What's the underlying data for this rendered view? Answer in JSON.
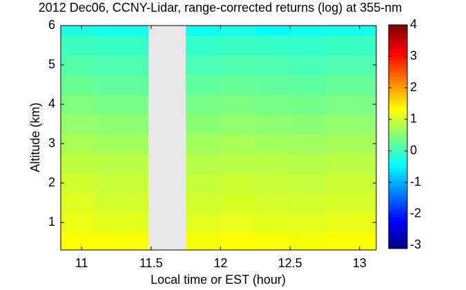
{
  "chart_data": {
    "type": "heatmap",
    "title": "2012 Dec06, CCNY-Lidar, range-corrected returns (log) at 355-nm",
    "x_label": "Local time or EST (hour)",
    "y_label": "Altitude (km)",
    "x_bins": [
      10.85,
      11.1,
      11.42,
      11.48,
      11.75,
      12,
      12.25,
      12.5,
      12.75,
      13.12
    ],
    "y_bins": [
      0.3,
      0.75,
      1.25,
      1.75,
      2.25,
      2.75,
      3.25,
      3.75,
      4.25,
      4.75,
      5.25,
      5.75,
      6.0
    ],
    "z": [
      [
        1.35,
        1.3,
        1.3,
        null,
        1.28,
        1.33,
        1.3,
        1.27,
        1.32
      ],
      [
        1.2,
        1.15,
        1.15,
        null,
        1.13,
        1.18,
        1.15,
        1.12,
        1.17
      ],
      [
        1.1,
        1.05,
        1.05,
        null,
        1.03,
        1.08,
        1.05,
        1.02,
        1.07
      ],
      [
        1.0,
        0.95,
        0.95,
        null,
        0.93,
        0.98,
        0.95,
        0.92,
        0.97
      ],
      [
        0.9,
        0.85,
        0.85,
        null,
        0.83,
        0.88,
        0.85,
        0.82,
        0.87
      ],
      [
        0.75,
        0.7,
        0.7,
        null,
        0.68,
        0.73,
        0.7,
        0.67,
        0.72
      ],
      [
        0.6,
        0.55,
        0.55,
        null,
        0.53,
        0.58,
        0.55,
        0.52,
        0.57
      ],
      [
        0.45,
        0.4,
        0.4,
        null,
        0.38,
        0.43,
        0.4,
        0.37,
        0.42
      ],
      [
        0.3,
        0.25,
        0.25,
        null,
        0.23,
        0.28,
        0.25,
        0.22,
        0.27
      ],
      [
        0.15,
        0.1,
        0.1,
        null,
        0.08,
        0.13,
        0.1,
        0.07,
        0.12
      ],
      [
        0,
        -0.05,
        -0.05,
        null,
        -0.07,
        -0.02,
        -0.05,
        -0.08,
        -0.03
      ],
      [
        -0.25,
        -0.3,
        -0.3,
        null,
        -0.35,
        -0.28,
        -0.4,
        -0.33,
        -0.3
      ]
    ],
    "xlim": [
      10.85,
      13.12
    ],
    "xticks": [
      11,
      11.5,
      12,
      12.5,
      13
    ],
    "ylim": [
      0.3,
      6
    ],
    "yticks": [
      1,
      2,
      3,
      4,
      5,
      6
    ],
    "clim": [
      -3.1,
      4
    ],
    "cticks": [
      -3,
      -2,
      -1,
      0,
      1,
      2,
      3,
      4
    ],
    "colormap": "jet"
  }
}
